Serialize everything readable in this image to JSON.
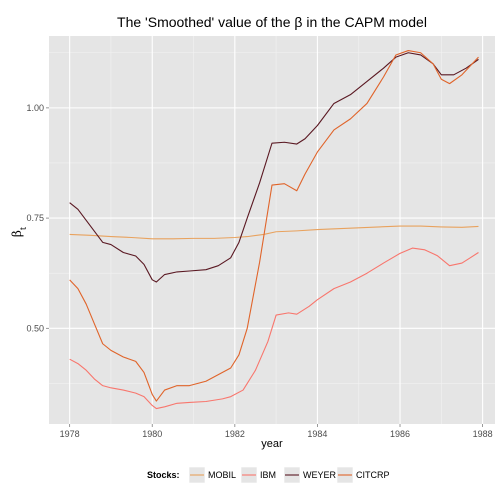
{
  "chart_data": {
    "type": "line",
    "title": "The 'Smoothed' value of the β in the CAPM model",
    "xlabel": "year",
    "ylabel": {
      "main": "β",
      "sub": "t"
    },
    "xlim": [
      1977.5,
      1988.3
    ],
    "ylim": [
      0.283,
      1.163
    ],
    "x_ticks": [
      1978,
      1980,
      1982,
      1984,
      1986,
      1988
    ],
    "x_tick_labels": [
      "1978",
      "1980",
      "1982",
      "1984",
      "1986",
      "1988"
    ],
    "y_ticks": [
      0.5,
      0.75,
      1.0
    ],
    "y_tick_labels": [
      "0.50",
      "0.75",
      "1.00"
    ],
    "grid": true,
    "legend_position": "bottom",
    "legend_title": "Stocks:",
    "series": [
      {
        "name": "MOBIL",
        "color": "#E8A25E",
        "points": [
          [
            1978.0,
            0.713
          ],
          [
            1978.5,
            0.711
          ],
          [
            1979.0,
            0.708
          ],
          [
            1979.5,
            0.706
          ],
          [
            1980.0,
            0.703
          ],
          [
            1980.5,
            0.703
          ],
          [
            1981.0,
            0.704
          ],
          [
            1981.5,
            0.704
          ],
          [
            1982.0,
            0.706
          ],
          [
            1982.3,
            0.708
          ],
          [
            1982.7,
            0.713
          ],
          [
            1983.0,
            0.719
          ],
          [
            1983.5,
            0.721
          ],
          [
            1984.0,
            0.724
          ],
          [
            1984.5,
            0.726
          ],
          [
            1985.0,
            0.728
          ],
          [
            1985.5,
            0.73
          ],
          [
            1986.0,
            0.732
          ],
          [
            1986.5,
            0.732
          ],
          [
            1987.0,
            0.73
          ],
          [
            1987.5,
            0.729
          ],
          [
            1987.9,
            0.731
          ]
        ]
      },
      {
        "name": "IBM",
        "color": "#F8766D",
        "points": [
          [
            1978.0,
            0.43
          ],
          [
            1978.2,
            0.42
          ],
          [
            1978.4,
            0.405
          ],
          [
            1978.6,
            0.385
          ],
          [
            1978.8,
            0.37
          ],
          [
            1979.0,
            0.365
          ],
          [
            1979.3,
            0.36
          ],
          [
            1979.6,
            0.353
          ],
          [
            1979.8,
            0.345
          ],
          [
            1980.0,
            0.325
          ],
          [
            1980.1,
            0.318
          ],
          [
            1980.3,
            0.322
          ],
          [
            1980.6,
            0.33
          ],
          [
            1980.9,
            0.332
          ],
          [
            1981.3,
            0.334
          ],
          [
            1981.7,
            0.34
          ],
          [
            1981.9,
            0.345
          ],
          [
            1982.2,
            0.36
          ],
          [
            1982.5,
            0.405
          ],
          [
            1982.8,
            0.47
          ],
          [
            1983.0,
            0.53
          ],
          [
            1983.3,
            0.535
          ],
          [
            1983.5,
            0.532
          ],
          [
            1983.8,
            0.55
          ],
          [
            1984.0,
            0.565
          ],
          [
            1984.4,
            0.59
          ],
          [
            1984.8,
            0.605
          ],
          [
            1985.2,
            0.625
          ],
          [
            1985.6,
            0.648
          ],
          [
            1986.0,
            0.67
          ],
          [
            1986.3,
            0.682
          ],
          [
            1986.6,
            0.678
          ],
          [
            1986.9,
            0.665
          ],
          [
            1987.2,
            0.642
          ],
          [
            1987.5,
            0.648
          ],
          [
            1987.7,
            0.66
          ],
          [
            1987.9,
            0.672
          ]
        ]
      },
      {
        "name": "WEYER",
        "color": "#5A1822",
        "points": [
          [
            1978.0,
            0.785
          ],
          [
            1978.2,
            0.77
          ],
          [
            1978.4,
            0.745
          ],
          [
            1978.6,
            0.72
          ],
          [
            1978.8,
            0.695
          ],
          [
            1979.0,
            0.69
          ],
          [
            1979.3,
            0.672
          ],
          [
            1979.6,
            0.664
          ],
          [
            1979.8,
            0.645
          ],
          [
            1980.0,
            0.61
          ],
          [
            1980.1,
            0.605
          ],
          [
            1980.3,
            0.622
          ],
          [
            1980.6,
            0.628
          ],
          [
            1980.9,
            0.63
          ],
          [
            1981.3,
            0.633
          ],
          [
            1981.6,
            0.642
          ],
          [
            1981.9,
            0.66
          ],
          [
            1982.1,
            0.695
          ],
          [
            1982.3,
            0.75
          ],
          [
            1982.6,
            0.83
          ],
          [
            1982.9,
            0.92
          ],
          [
            1983.2,
            0.922
          ],
          [
            1983.5,
            0.918
          ],
          [
            1983.7,
            0.93
          ],
          [
            1984.0,
            0.96
          ],
          [
            1984.4,
            1.01
          ],
          [
            1984.8,
            1.03
          ],
          [
            1985.2,
            1.06
          ],
          [
            1985.6,
            1.09
          ],
          [
            1985.9,
            1.115
          ],
          [
            1986.2,
            1.125
          ],
          [
            1986.5,
            1.12
          ],
          [
            1986.8,
            1.1
          ],
          [
            1987.0,
            1.075
          ],
          [
            1987.3,
            1.075
          ],
          [
            1987.6,
            1.09
          ],
          [
            1987.9,
            1.11
          ]
        ]
      },
      {
        "name": "CITCRP",
        "color": "#E0642A",
        "points": [
          [
            1978.0,
            0.61
          ],
          [
            1978.2,
            0.59
          ],
          [
            1978.4,
            0.555
          ],
          [
            1978.6,
            0.51
          ],
          [
            1978.8,
            0.465
          ],
          [
            1979.0,
            0.45
          ],
          [
            1979.3,
            0.435
          ],
          [
            1979.6,
            0.425
          ],
          [
            1979.8,
            0.4
          ],
          [
            1980.0,
            0.35
          ],
          [
            1980.1,
            0.335
          ],
          [
            1980.3,
            0.36
          ],
          [
            1980.6,
            0.37
          ],
          [
            1980.9,
            0.37
          ],
          [
            1981.3,
            0.38
          ],
          [
            1981.6,
            0.395
          ],
          [
            1981.9,
            0.41
          ],
          [
            1982.1,
            0.44
          ],
          [
            1982.3,
            0.5
          ],
          [
            1982.6,
            0.65
          ],
          [
            1982.9,
            0.825
          ],
          [
            1983.2,
            0.828
          ],
          [
            1983.5,
            0.812
          ],
          [
            1983.7,
            0.85
          ],
          [
            1984.0,
            0.9
          ],
          [
            1984.4,
            0.95
          ],
          [
            1984.8,
            0.975
          ],
          [
            1985.2,
            1.01
          ],
          [
            1985.6,
            1.07
          ],
          [
            1985.9,
            1.12
          ],
          [
            1986.2,
            1.13
          ],
          [
            1986.5,
            1.125
          ],
          [
            1986.8,
            1.1
          ],
          [
            1987.0,
            1.065
          ],
          [
            1987.2,
            1.055
          ],
          [
            1987.5,
            1.075
          ],
          [
            1987.9,
            1.115
          ]
        ]
      }
    ]
  }
}
